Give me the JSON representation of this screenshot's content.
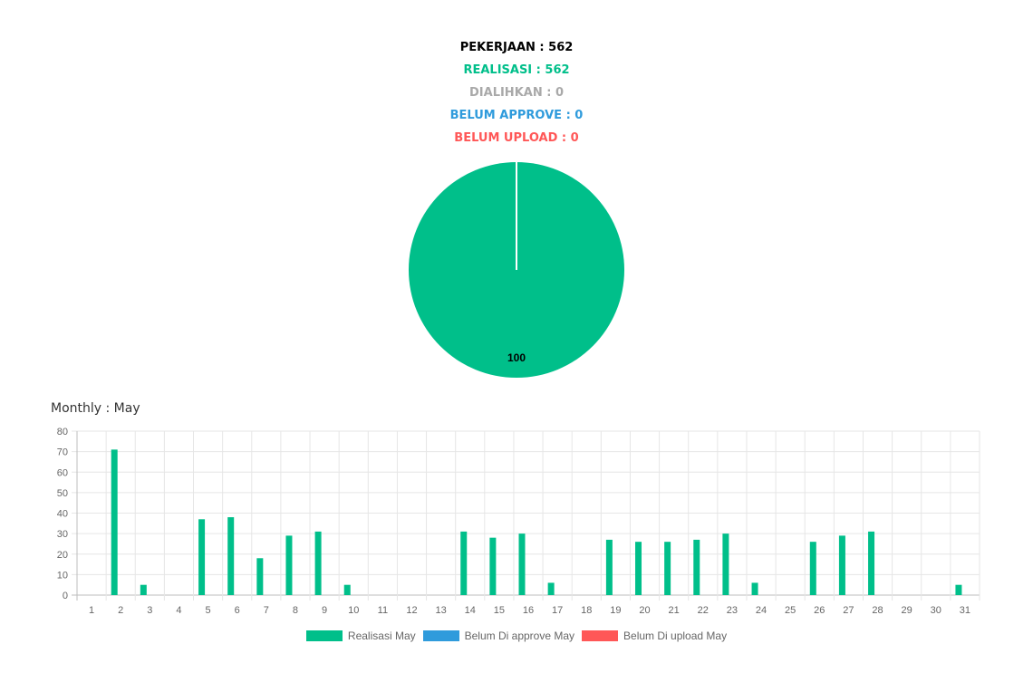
{
  "summary": {
    "total": "PEKERJAAN : 562",
    "realisasi": "REALISASI : 562",
    "dialihkan": "DIALIHKAN : 0",
    "belum_approve": "BELUM APPROVE : 0",
    "belum_upload": "BELUM UPLOAD : 0"
  },
  "colors": {
    "realisasi": "#00bf8a",
    "dialihkan": "#a9a9a9",
    "belum_approve": "#2f9bdc",
    "belum_upload": "#ff5757"
  },
  "monthly": {
    "title": "Monthly : May"
  },
  "chart_data": [
    {
      "type": "pie",
      "slices": [
        {
          "name": "Realisasi",
          "value": 100,
          "label": "100",
          "color": "#00bf8a"
        }
      ]
    },
    {
      "type": "bar",
      "categories": [
        "1",
        "2",
        "3",
        "4",
        "5",
        "6",
        "7",
        "8",
        "9",
        "10",
        "11",
        "12",
        "13",
        "14",
        "15",
        "16",
        "17",
        "18",
        "19",
        "20",
        "21",
        "22",
        "23",
        "24",
        "25",
        "26",
        "27",
        "28",
        "29",
        "30",
        "31"
      ],
      "series": [
        {
          "name": "Realisasi May",
          "color": "#00bf8a",
          "values": [
            0,
            71,
            5,
            0,
            37,
            38,
            18,
            29,
            31,
            5,
            0,
            0,
            0,
            31,
            28,
            30,
            6,
            0,
            27,
            26,
            26,
            27,
            30,
            6,
            0,
            26,
            29,
            31,
            0,
            0,
            5
          ]
        },
        {
          "name": "Belum Di approve May",
          "color": "#2f9bdc",
          "values": [
            0,
            0,
            0,
            0,
            0,
            0,
            0,
            0,
            0,
            0,
            0,
            0,
            0,
            0,
            0,
            0,
            0,
            0,
            0,
            0,
            0,
            0,
            0,
            0,
            0,
            0,
            0,
            0,
            0,
            0,
            0
          ]
        },
        {
          "name": "Belum Di upload May",
          "color": "#ff5757",
          "values": [
            0,
            0,
            0,
            0,
            0,
            0,
            0,
            0,
            0,
            0,
            0,
            0,
            0,
            0,
            0,
            0,
            0,
            0,
            0,
            0,
            0,
            0,
            0,
            0,
            0,
            0,
            0,
            0,
            0,
            0,
            0
          ]
        }
      ],
      "ylim": [
        0,
        80
      ],
      "yticks": [
        0,
        10,
        20,
        30,
        40,
        50,
        60,
        70,
        80
      ],
      "grid": true,
      "legend": "bottom"
    }
  ]
}
